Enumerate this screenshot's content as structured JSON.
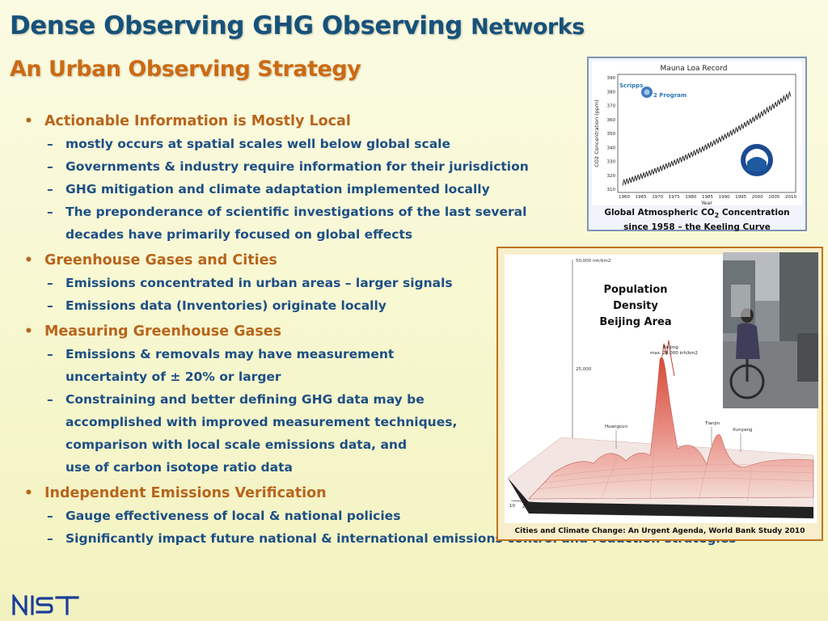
{
  "slide": {
    "title_main": "Dense Observing GHG Observing",
    "title_tail": "Networks",
    "subtitle": "An Urban Observing Strategy",
    "colors": {
      "title": "#17527a",
      "subtitle": "#cc6a12",
      "bullet": "#b8651c",
      "sub_bullet": "#1d4f85"
    }
  },
  "bullets": [
    {
      "text": "Actionable Information is Mostly Local",
      "subs": [
        {
          "lines": [
            "mostly occurs at spatial scales well below global scale"
          ]
        },
        {
          "lines": [
            "Governments & industry require information for their jurisdiction"
          ]
        },
        {
          "lines": [
            "GHG mitigation and climate adaptation implemented locally"
          ]
        },
        {
          "lines": [
            "The preponderance of scientific investigations of the last several",
            "decades have primarily focused on global effects"
          ]
        }
      ]
    },
    {
      "text": "Greenhouse Gases and Cities",
      "subs": [
        {
          "lines": [
            "Emissions concentrated in urban areas – larger signals"
          ]
        },
        {
          "lines": [
            "Emissions data (Inventories) originate locally"
          ]
        }
      ]
    },
    {
      "text": "Measuring Greenhouse Gases",
      "subs": [
        {
          "lines": [
            "Emissions & removals may have measurement",
            "uncertainty of ± 20% or larger"
          ]
        },
        {
          "lines": [
            "Constraining and better defining GHG data may be",
            "accomplished with improved measurement techniques,",
            "comparison with local scale emissions data, and",
            "use of carbon isotope ratio data"
          ]
        }
      ]
    },
    {
      "text": "Independent Emissions Verification",
      "subs": [
        {
          "lines": [
            "Gauge effectiveness of local & national policies"
          ]
        },
        {
          "lines": [
            "Significantly impact future national & international emissions control and reduction strategies"
          ]
        }
      ]
    }
  ],
  "mauna_loa": {
    "title": "Mauna Loa Record",
    "ylabel": "CO2 Concentration (ppm)",
    "xlabel": "Year",
    "yticks": [
      "390",
      "380",
      "370",
      "360",
      "350",
      "340",
      "330",
      "320",
      "310"
    ],
    "xticks": [
      "1960",
      "1965",
      "1970",
      "1975",
      "1980",
      "1985",
      "1990",
      "1995",
      "2000",
      "2005",
      "2010"
    ],
    "logo_text_1": "Scripps",
    "logo_text_2": "2 Program",
    "caption_line1": "Global Atmospheric CO",
    "caption_sub": "2",
    "caption_line1_tail": " Concentration",
    "caption_line2": "since 1958 – the Keeling Curve"
  },
  "population": {
    "label_lines": [
      "Population",
      "Density",
      "Beijing Area"
    ],
    "axis_top": "50,000 inh/km2",
    "axis_mid": "25,000",
    "peak_label": "Beijing",
    "peak_sub": "max. 29,000 inh/km2",
    "places": [
      "Huangcun",
      "Tianjin",
      "Xunyang"
    ],
    "scale": [
      "10",
      "20",
      "30km"
    ],
    "caption": "Cities and Climate Change: An Urgent Agenda, World Bank Study 2010"
  },
  "footer": {
    "logo": "NIST",
    "logo_color": "#1a3e98"
  }
}
